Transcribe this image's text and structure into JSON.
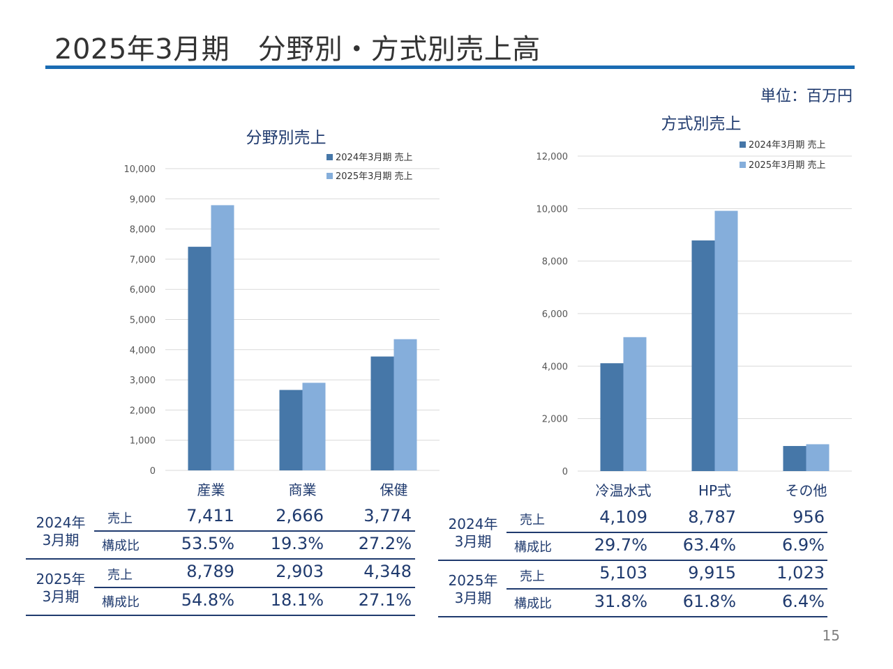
{
  "page": {
    "title": "2025年3月期　分野別・方式別売上高",
    "unit": "単位：百万円",
    "page_number": "15"
  },
  "colors": {
    "series_2024": "#4677a8",
    "series_2025": "#85aedb",
    "accent": "#1a6cb3",
    "text": "#1f3a6e"
  },
  "chart_data": [
    {
      "type": "bar",
      "title": "分野別売上",
      "categories": [
        "産業",
        "商業",
        "保健"
      ],
      "series": [
        {
          "name": "2024年3月期 売上",
          "values": [
            7411,
            2666,
            3774
          ]
        },
        {
          "name": "2025年3月期 売上",
          "values": [
            8789,
            2903,
            4348
          ]
        }
      ],
      "ylim": [
        0,
        10000
      ],
      "yticks": [
        "0",
        "1,000",
        "2,000",
        "3,000",
        "4,000",
        "5,000",
        "6,000",
        "7,000",
        "8,000",
        "9,000",
        "10,000"
      ],
      "legend": "top-right",
      "grid": true
    },
    {
      "type": "bar",
      "title": "方式別売上",
      "categories": [
        "冷温水式",
        "HP式",
        "その他"
      ],
      "series": [
        {
          "name": "2024年3月期 売上",
          "values": [
            4109,
            8787,
            956
          ]
        },
        {
          "name": "2025年3月期 売上",
          "values": [
            5103,
            9915,
            1023
          ]
        }
      ],
      "ylim": [
        0,
        12000
      ],
      "yticks": [
        "0",
        "2,000",
        "4,000",
        "6,000",
        "8,000",
        "10,000",
        "12,000"
      ],
      "legend": "top-right",
      "grid": true
    }
  ],
  "tables": {
    "field": {
      "rows": [
        {
          "period": [
            "2024年",
            "3月期"
          ],
          "sales_label": "売上",
          "sales": [
            "7,411",
            "2,666",
            "3,774"
          ],
          "ratio_label": "構成比",
          "ratio": [
            "53.5%",
            "19.3%",
            "27.2%"
          ]
        },
        {
          "period": [
            "2025年",
            "3月期"
          ],
          "sales_label": "売上",
          "sales": [
            "8,789",
            "2,903",
            "4,348"
          ],
          "ratio_label": "構成比",
          "ratio": [
            "54.8%",
            "18.1%",
            "27.1%"
          ]
        }
      ]
    },
    "method": {
      "rows": [
        {
          "period": [
            "2024年",
            "3月期"
          ],
          "sales_label": "売上",
          "sales": [
            "4,109",
            "8,787",
            "956"
          ],
          "ratio_label": "構成比",
          "ratio": [
            "29.7%",
            "63.4%",
            "6.9%"
          ]
        },
        {
          "period": [
            "2025年",
            "3月期"
          ],
          "sales_label": "売上",
          "sales": [
            "5,103",
            "9,915",
            "1,023"
          ],
          "ratio_label": "構成比",
          "ratio": [
            "31.8%",
            "61.8%",
            "6.4%"
          ]
        }
      ]
    }
  }
}
